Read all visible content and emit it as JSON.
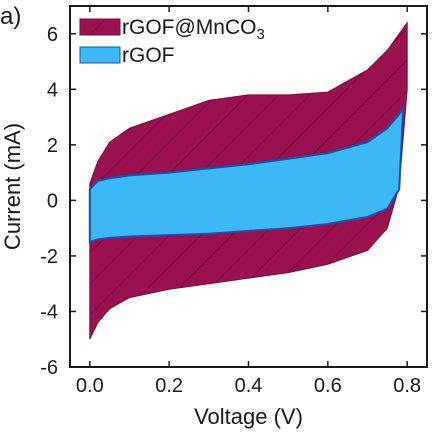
{
  "panel_label": "a)",
  "chart_data": {
    "type": "area",
    "xlabel": "Voltage (V)",
    "ylabel": "Current (mA)",
    "xlim": [
      -0.05,
      0.85
    ],
    "ylim": [
      -6,
      7
    ],
    "xticks": [
      0.0,
      0.2,
      0.4,
      0.6,
      0.8
    ],
    "xtick_labels": [
      "0.0",
      "0.2",
      "0.4",
      "0.6",
      "0.8"
    ],
    "yticks": [
      -6,
      -4,
      -2,
      0,
      2,
      4,
      6
    ],
    "ytick_labels": [
      "-6",
      "-4",
      "-2",
      "0",
      "2",
      "4",
      "6"
    ],
    "grid": false,
    "legend_position": "top-left",
    "series": [
      {
        "name": "rGOF@MnCO3",
        "name_main": "rGOF@MnCO",
        "name_sub": "3",
        "color": "#99114f",
        "hatch": true,
        "upper": {
          "x": [
            0.0,
            0.02,
            0.05,
            0.1,
            0.2,
            0.3,
            0.4,
            0.5,
            0.6,
            0.7,
            0.75,
            0.78,
            0.8
          ],
          "y": [
            0.6,
            1.4,
            2.1,
            2.6,
            3.1,
            3.6,
            3.8,
            3.8,
            3.9,
            4.7,
            5.4,
            6.0,
            6.4
          ]
        },
        "lower": {
          "x": [
            0.0,
            0.02,
            0.05,
            0.1,
            0.2,
            0.3,
            0.4,
            0.5,
            0.6,
            0.7,
            0.75,
            0.78,
            0.8
          ],
          "y": [
            -5.0,
            -4.4,
            -3.9,
            -3.5,
            -3.2,
            -3.0,
            -2.8,
            -2.6,
            -2.3,
            -1.8,
            -1.0,
            0.5,
            4.0
          ]
        }
      },
      {
        "name": "rGOF",
        "color": "#3db8f5",
        "hatch": false,
        "upper": {
          "x": [
            0.0,
            0.02,
            0.05,
            0.1,
            0.2,
            0.3,
            0.4,
            0.5,
            0.6,
            0.7,
            0.75,
            0.78,
            0.79
          ],
          "y": [
            0.4,
            0.7,
            0.8,
            0.9,
            1.0,
            1.15,
            1.3,
            1.5,
            1.7,
            2.1,
            2.6,
            3.1,
            3.3
          ]
        },
        "lower": {
          "x": [
            0.0,
            0.02,
            0.05,
            0.1,
            0.2,
            0.3,
            0.4,
            0.5,
            0.6,
            0.7,
            0.75,
            0.78,
            0.79
          ],
          "y": [
            -1.5,
            -1.4,
            -1.35,
            -1.3,
            -1.25,
            -1.2,
            -1.1,
            -1.0,
            -0.85,
            -0.6,
            -0.3,
            0.4,
            3.3
          ]
        }
      }
    ]
  }
}
